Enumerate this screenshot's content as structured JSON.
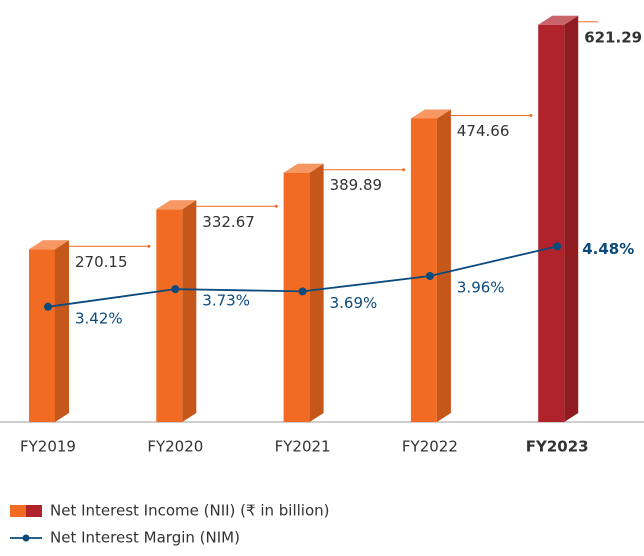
{
  "chart_data": {
    "type": "bar-line",
    "categories": [
      "FY2019",
      "FY2020",
      "FY2021",
      "FY2022",
      "FY2023"
    ],
    "highlight_index": 4,
    "series": [
      {
        "name": "Net Interest Income (NII) (₹ in billion)",
        "type": "bar",
        "color": "#f26b22",
        "highlight_color": "#b0232a",
        "values": [
          270.15,
          332.67,
          389.89,
          474.66,
          621.29
        ]
      },
      {
        "name": "Net Interest Margin (NIM)",
        "type": "line",
        "axis": "y2",
        "color": "#0b4a7d",
        "values": [
          3.42,
          3.73,
          3.69,
          3.96,
          4.48
        ],
        "value_labels": [
          "3.42%",
          "3.73%",
          "3.69%",
          "3.96%",
          "4.48%"
        ]
      }
    ],
    "ylim": [
      0,
      660
    ],
    "y2lim": [
      1.4,
      8.8
    ]
  }
}
